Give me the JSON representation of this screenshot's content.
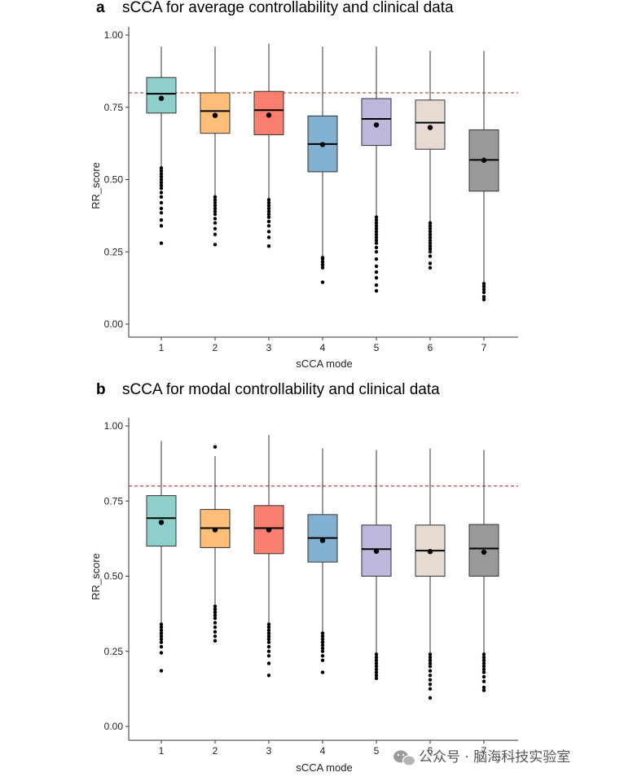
{
  "chart_data": [
    {
      "type": "box",
      "panel": "a",
      "title": "sCCA for average controllability and clinical data",
      "xlabel": "sCCA mode",
      "ylabel": "RR_score",
      "ylim": [
        0,
        1
      ],
      "yticks": [
        "0.00",
        "0.25",
        "0.50",
        "0.75",
        "1.00"
      ],
      "reference_line": 0.8,
      "categories": [
        "1",
        "2",
        "3",
        "4",
        "5",
        "6",
        "7"
      ],
      "colors": [
        "#8ECFC9",
        "#FFBE7A",
        "#FA7F6F",
        "#82B0D2",
        "#BEB8DC",
        "#E7DAD2",
        "#999999"
      ],
      "boxes": [
        {
          "mode": "1",
          "whisker_low": 0.545,
          "q1": 0.73,
          "median": 0.797,
          "q3": 0.853,
          "whisker_high": 0.96,
          "mean": 0.781,
          "outliers": [
            0.28,
            0.34,
            0.36,
            0.385,
            0.4,
            0.42,
            0.44,
            0.455,
            0.47,
            0.48,
            0.49,
            0.5,
            0.51,
            0.52,
            0.53,
            0.54
          ]
        },
        {
          "mode": "2",
          "whisker_low": 0.44,
          "q1": 0.66,
          "median": 0.737,
          "q3": 0.8,
          "whisker_high": 0.96,
          "mean": 0.722,
          "outliers": [
            0.275,
            0.31,
            0.33,
            0.35,
            0.365,
            0.38,
            0.39,
            0.4,
            0.41,
            0.42,
            0.43,
            0.44
          ]
        },
        {
          "mode": "3",
          "whisker_low": 0.43,
          "q1": 0.655,
          "median": 0.74,
          "q3": 0.805,
          "whisker_high": 0.97,
          "mean": 0.723,
          "outliers": [
            0.27,
            0.3,
            0.32,
            0.34,
            0.355,
            0.37,
            0.38,
            0.39,
            0.4,
            0.41,
            0.42,
            0.43
          ]
        },
        {
          "mode": "4",
          "whisker_low": 0.23,
          "q1": 0.527,
          "median": 0.623,
          "q3": 0.72,
          "whisker_high": 0.96,
          "mean": 0.621,
          "outliers": [
            0.145,
            0.195,
            0.205,
            0.215,
            0.225,
            0.23
          ]
        },
        {
          "mode": "5",
          "whisker_low": 0.375,
          "q1": 0.618,
          "median": 0.71,
          "q3": 0.78,
          "whisker_high": 0.96,
          "mean": 0.689,
          "outliers": [
            0.115,
            0.135,
            0.16,
            0.18,
            0.2,
            0.225,
            0.25,
            0.265,
            0.28,
            0.29,
            0.3,
            0.31,
            0.32,
            0.33,
            0.34,
            0.35,
            0.36,
            0.37
          ]
        },
        {
          "mode": "6",
          "whisker_low": 0.35,
          "q1": 0.605,
          "median": 0.697,
          "q3": 0.775,
          "whisker_high": 0.945,
          "mean": 0.68,
          "outliers": [
            0.195,
            0.21,
            0.235,
            0.25,
            0.26,
            0.27,
            0.28,
            0.29,
            0.3,
            0.31,
            0.32,
            0.33,
            0.34,
            0.35
          ]
        },
        {
          "mode": "7",
          "whisker_low": 0.145,
          "q1": 0.46,
          "median": 0.568,
          "q3": 0.672,
          "whisker_high": 0.945,
          "mean": 0.567,
          "outliers": [
            0.085,
            0.095,
            0.11,
            0.12,
            0.13,
            0.14
          ]
        }
      ]
    },
    {
      "type": "box",
      "panel": "b",
      "title": "sCCA for modal controllability and clinical data",
      "xlabel": "sCCA mode",
      "ylabel": "RR_score",
      "ylim": [
        0,
        1
      ],
      "yticks": [
        "0.00",
        "0.25",
        "0.50",
        "0.75",
        "1.00"
      ],
      "reference_line": 0.8,
      "categories": [
        "1",
        "2",
        "3",
        "4",
        "5",
        "6",
        "7"
      ],
      "colors": [
        "#8ECFC9",
        "#FFBE7A",
        "#FA7F6F",
        "#82B0D2",
        "#BEB8DC",
        "#E7DAD2",
        "#999999"
      ],
      "boxes": [
        {
          "mode": "1",
          "whisker_low": 0.345,
          "q1": 0.6,
          "median": 0.693,
          "q3": 0.768,
          "whisker_high": 0.95,
          "mean": 0.679,
          "outliers": [
            0.185,
            0.245,
            0.265,
            0.28,
            0.29,
            0.3,
            0.31,
            0.32,
            0.33,
            0.34
          ]
        },
        {
          "mode": "2",
          "whisker_low": 0.4,
          "q1": 0.595,
          "median": 0.66,
          "q3": 0.722,
          "whisker_high": 0.9,
          "mean": 0.654,
          "outliers": [
            0.285,
            0.3,
            0.315,
            0.33,
            0.345,
            0.36,
            0.37,
            0.38,
            0.39,
            0.4,
            0.93
          ]
        },
        {
          "mode": "3",
          "whisker_low": 0.34,
          "q1": 0.575,
          "median": 0.66,
          "q3": 0.735,
          "whisker_high": 0.97,
          "mean": 0.654,
          "outliers": [
            0.17,
            0.21,
            0.235,
            0.25,
            0.265,
            0.28,
            0.29,
            0.3,
            0.31,
            0.32,
            0.33,
            0.34
          ]
        },
        {
          "mode": "4",
          "whisker_low": 0.31,
          "q1": 0.547,
          "median": 0.627,
          "q3": 0.705,
          "whisker_high": 0.925,
          "mean": 0.619,
          "outliers": [
            0.18,
            0.22,
            0.235,
            0.25,
            0.26,
            0.27,
            0.28,
            0.29,
            0.3,
            0.31
          ]
        },
        {
          "mode": "5",
          "whisker_low": 0.245,
          "q1": 0.5,
          "median": 0.59,
          "q3": 0.67,
          "whisker_high": 0.92,
          "mean": 0.583,
          "outliers": [
            0.16,
            0.17,
            0.18,
            0.19,
            0.2,
            0.21,
            0.22,
            0.23,
            0.24
          ]
        },
        {
          "mode": "6",
          "whisker_low": 0.245,
          "q1": 0.5,
          "median": 0.585,
          "q3": 0.67,
          "whisker_high": 0.925,
          "mean": 0.582,
          "outliers": [
            0.095,
            0.125,
            0.14,
            0.155,
            0.17,
            0.185,
            0.2,
            0.21,
            0.22,
            0.23,
            0.24
          ]
        },
        {
          "mode": "7",
          "whisker_low": 0.24,
          "q1": 0.5,
          "median": 0.592,
          "q3": 0.672,
          "whisker_high": 0.92,
          "mean": 0.58,
          "outliers": [
            0.12,
            0.13,
            0.15,
            0.165,
            0.18,
            0.19,
            0.2,
            0.21,
            0.22,
            0.23,
            0.24
          ]
        }
      ]
    }
  ],
  "watermark": {
    "text": "公众号 · 脑海科技实验室",
    "icon": "wechat-icon"
  }
}
